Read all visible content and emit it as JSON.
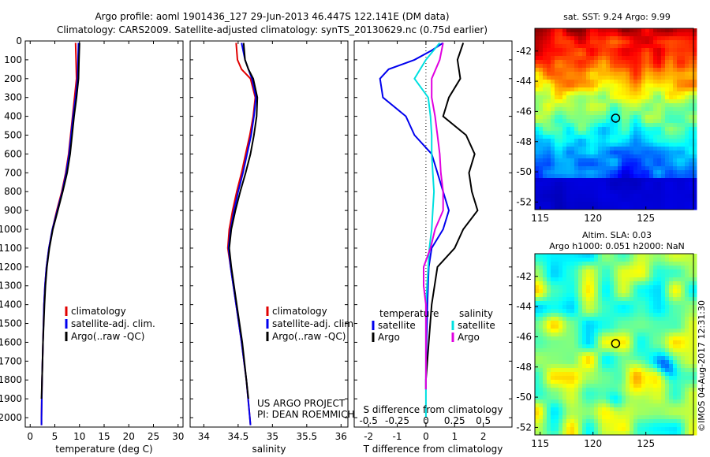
{
  "header": {
    "title_line1": "Argo profile: aoml 1901436_127 29-Jun-2013 46.447S 122.141E (DM data)",
    "title_line2": "Climatology: CARS2009. Satellite-adjusted climatology: synTS_20130629.nc (0.75d earlier)"
  },
  "colors": {
    "climatology": "#e00000",
    "satellite": "#0000ee",
    "argo": "#000000",
    "satellite_s": "#00e0e0",
    "argo_s": "#e000e0"
  },
  "chart_data": [
    {
      "id": "temperature",
      "type": "line",
      "xlabel": "temperature (deg C)",
      "ylabel": "",
      "xlim": [
        -1,
        31
      ],
      "ylim": [
        2050,
        0
      ],
      "y_inverted": true,
      "xticks": [
        0,
        5,
        10,
        15,
        20,
        25,
        30
      ],
      "yticks": [
        0,
        100,
        200,
        300,
        400,
        500,
        600,
        700,
        800,
        900,
        1000,
        1100,
        1200,
        1300,
        1400,
        1500,
        1600,
        1700,
        1800,
        1900,
        2000
      ],
      "legend": [
        "climatology",
        "satellite-adj. clim.",
        "Argo(..raw -QC)"
      ],
      "series": [
        {
          "name": "climatology",
          "color": "#e00000",
          "depth": [
            10,
            100,
            200,
            300,
            400,
            500,
            600,
            700,
            800,
            900,
            1000,
            1100,
            1200,
            1300,
            1400,
            1600,
            1800,
            2000,
            2040
          ],
          "values": [
            9.2,
            9.3,
            9.4,
            9.0,
            8.6,
            8.2,
            7.8,
            7.2,
            6.4,
            5.4,
            4.5,
            3.8,
            3.3,
            3.0,
            2.8,
            2.6,
            2.4,
            2.3,
            2.3
          ]
        },
        {
          "name": "satellite-adj. clim.",
          "color": "#0000ee",
          "depth": [
            10,
            100,
            200,
            300,
            400,
            500,
            600,
            700,
            800,
            900,
            1000,
            1100,
            1200,
            1300,
            1400,
            1600,
            1800,
            2000,
            2040
          ],
          "values": [
            9.8,
            9.7,
            9.6,
            9.2,
            8.7,
            8.3,
            7.9,
            7.3,
            6.5,
            5.5,
            4.5,
            3.8,
            3.3,
            3.0,
            2.8,
            2.6,
            2.4,
            2.3,
            2.3
          ]
        },
        {
          "name": "Argo(..raw -QC)",
          "color": "#000000",
          "depth": [
            10,
            100,
            200,
            300,
            400,
            500,
            600,
            700,
            800,
            900,
            1000,
            1100,
            1200,
            1300,
            1400,
            1600,
            1800,
            1900
          ],
          "values": [
            10.0,
            9.9,
            9.8,
            9.4,
            8.9,
            8.5,
            8.1,
            7.5,
            6.6,
            5.6,
            4.6,
            3.9,
            3.4,
            3.1,
            2.9,
            2.6,
            2.4,
            2.3
          ]
        }
      ]
    },
    {
      "id": "salinity",
      "type": "line",
      "xlabel": "salinity",
      "ylabel": "",
      "xlim": [
        33.8,
        36.1
      ],
      "ylim": [
        2050,
        0
      ],
      "y_inverted": true,
      "xticks": [
        34,
        34.5,
        35,
        35.5,
        36
      ],
      "legend": [
        "climatology",
        "satellite-adj. clim.",
        "Argo(..raw -QC)"
      ],
      "annotation": [
        "US ARGO PROJECT",
        "PI: DEAN ROEMMICH"
      ],
      "series": [
        {
          "name": "climatology",
          "color": "#e00000",
          "depth": [
            10,
            100,
            150,
            200,
            300,
            400,
            500,
            600,
            700,
            800,
            900,
            1000,
            1100,
            1200,
            1400,
            1600,
            1800,
            2000,
            2040
          ],
          "values": [
            34.47,
            34.49,
            34.55,
            34.68,
            34.75,
            34.72,
            34.67,
            34.61,
            34.55,
            34.48,
            34.42,
            34.37,
            34.35,
            34.39,
            34.47,
            34.55,
            34.62,
            34.67,
            34.68
          ]
        },
        {
          "name": "satellite-adj. clim.",
          "color": "#0000ee",
          "depth": [
            10,
            100,
            150,
            200,
            300,
            400,
            500,
            600,
            700,
            800,
            900,
            1000,
            1100,
            1200,
            1400,
            1600,
            1800,
            2000,
            2040
          ],
          "values": [
            34.55,
            34.6,
            34.65,
            34.7,
            34.76,
            34.73,
            34.69,
            34.63,
            34.57,
            34.5,
            34.44,
            34.39,
            34.36,
            34.39,
            34.47,
            34.55,
            34.62,
            34.67,
            34.68
          ]
        },
        {
          "name": "Argo(..raw -QC)",
          "color": "#000000",
          "depth": [
            10,
            100,
            150,
            200,
            300,
            400,
            500,
            600,
            700,
            800,
            900,
            1000,
            1100,
            1200,
            1400,
            1600,
            1800,
            1900
          ],
          "values": [
            34.58,
            34.6,
            34.65,
            34.72,
            34.78,
            34.77,
            34.73,
            34.68,
            34.61,
            34.53,
            34.46,
            34.4,
            34.37,
            34.4,
            34.48,
            34.56,
            34.62,
            34.65
          ]
        }
      ]
    },
    {
      "id": "difference",
      "type": "line",
      "xlabel": "T difference from climatology",
      "xlabel_top": "S difference from climatology",
      "xlim": [
        -2.5,
        3
      ],
      "ylim": [
        2050,
        0
      ],
      "y_inverted": true,
      "xticks": [
        -2,
        -1,
        0,
        1,
        2
      ],
      "xticks_s_values": [
        -0.5,
        -0.25,
        0,
        0.25,
        0.5
      ],
      "xticks_s_labels": [
        "-0.5",
        "-0.25",
        "0",
        "0.25",
        "0.5"
      ],
      "legend_temperature_title": "temperature",
      "legend_salinity_title": "salinity",
      "legend": [
        "satellite",
        "Argo",
        "satellite",
        "Argo"
      ],
      "series": [
        {
          "name": "satellite",
          "group": "temperature",
          "color": "#0000ee",
          "depth": [
            10,
            50,
            100,
            150,
            200,
            300,
            400,
            500,
            600,
            700,
            800,
            900,
            1000,
            1100,
            1200,
            1400,
            1600,
            1800,
            1850
          ],
          "values": [
            0.6,
            0.2,
            -0.4,
            -1.3,
            -1.6,
            -1.5,
            -0.7,
            -0.4,
            0.2,
            0.4,
            0.6,
            0.8,
            0.6,
            0.2,
            0.1,
            0.05,
            0.02,
            0.0,
            0.0
          ]
        },
        {
          "name": "Argo",
          "group": "temperature",
          "color": "#000000",
          "depth": [
            10,
            100,
            200,
            300,
            400,
            500,
            600,
            700,
            800,
            900,
            1000,
            1100,
            1200,
            1400,
            1600,
            1800,
            1850
          ],
          "values": [
            1.3,
            1.1,
            1.2,
            0.8,
            0.6,
            1.4,
            1.7,
            1.5,
            1.6,
            1.8,
            1.3,
            1.0,
            0.4,
            0.2,
            0.1,
            0.0,
            0.0
          ]
        },
        {
          "name": "satellite",
          "group": "salinity",
          "color": "#00e0e0",
          "depth": [
            10,
            100,
            200,
            300,
            400,
            500,
            600,
            700,
            800,
            900,
            1000,
            1100,
            1200,
            1400,
            1600,
            1800,
            1950,
            2000
          ],
          "values": [
            0.12,
            0.0,
            -0.1,
            0.02,
            0.04,
            0.05,
            0.05,
            0.06,
            0.07,
            0.06,
            0.05,
            0.03,
            0.02,
            0.0,
            0.0,
            0.0,
            0.0,
            0.0
          ]
        },
        {
          "name": "Argo",
          "group": "salinity",
          "color": "#e000e0",
          "depth": [
            10,
            100,
            200,
            300,
            400,
            500,
            600,
            700,
            800,
            900,
            1000,
            1100,
            1200,
            1300,
            1400,
            1600,
            1800,
            1850
          ],
          "values": [
            0.15,
            0.12,
            0.05,
            0.05,
            0.08,
            0.1,
            0.12,
            0.13,
            0.15,
            0.15,
            0.08,
            0.04,
            -0.02,
            -0.02,
            0.0,
            0.0,
            0.0,
            0.0
          ]
        }
      ]
    },
    {
      "id": "sst_map",
      "type": "heatmap",
      "title": "sat. SST: 9.24 Argo: 9.99",
      "xlim": [
        114.5,
        129.5
      ],
      "ylim": [
        -52.5,
        -40.5
      ],
      "xticks": [
        115,
        120,
        125
      ],
      "yticks": [
        -42,
        -44,
        -46,
        -48,
        -50,
        -52
      ],
      "marker": {
        "lon": 122.141,
        "lat": -46.447
      }
    },
    {
      "id": "sla_map",
      "type": "heatmap",
      "title": "Altim. SLA: 0.03",
      "subtitle": "Argo h1000: 0.051 h2000: NaN",
      "xlim": [
        114.5,
        129.5
      ],
      "ylim": [
        -52.5,
        -40.5
      ],
      "xticks": [
        115,
        120,
        125
      ],
      "yticks": [
        -42,
        -44,
        -46,
        -48,
        -50,
        -52
      ],
      "marker": {
        "lon": 122.141,
        "lat": -46.447
      }
    }
  ],
  "footer": {
    "credit": "©IMOS 04-Aug-2017 12:31:30"
  }
}
